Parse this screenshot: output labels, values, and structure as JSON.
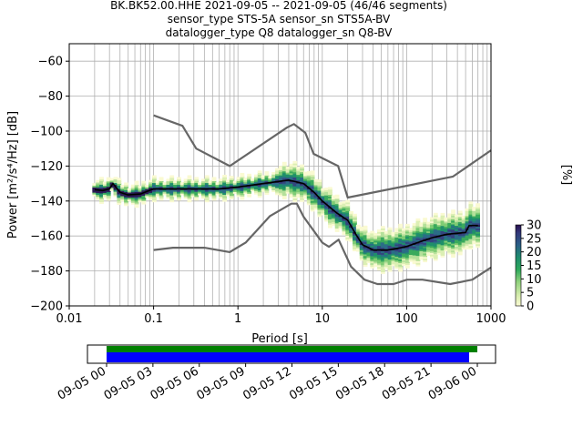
{
  "title": {
    "line1": "BK.BK52.00.HHE   2021-09-05 -- 2021-09-05  (46/46 segments)",
    "line2": "sensor_type STS-5A sensor_sn STS5A-BV",
    "line3": "datalogger_type Q8 datalogger_sn Q8-BV"
  },
  "chart_data": [
    {
      "type": "heatmap",
      "title": "",
      "xlabel": "Period [s]",
      "ylabel": "Power [m²/s⁴/Hz] [dB]",
      "x_scale": "log",
      "xlim": [
        0.01,
        1000
      ],
      "ylim": [
        -200,
        -50
      ],
      "x_ticks": [
        0.01,
        0.1,
        1,
        10,
        100,
        1000
      ],
      "x_tick_labels": [
        "0.01",
        "0.1",
        "1",
        "10",
        "100",
        "1000"
      ],
      "y_ticks": [
        -200,
        -180,
        -160,
        -140,
        -120,
        -100,
        -80,
        -60
      ],
      "y_tick_labels": [
        "−200",
        "−180",
        "−160",
        "−140",
        "−120",
        "−100",
        "−80",
        "−60"
      ],
      "grid": true,
      "series": [
        {
          "name": "",
          "kind": "noise-model-high",
          "color": "#666666",
          "x": [
            0.1,
            0.22,
            0.32,
            0.8,
            3.8,
            4.6,
            6.3,
            7.9,
            15.4,
            20,
            354.8,
            1000
          ],
          "y": [
            -91,
            -97,
            -110,
            -120,
            -98,
            -96,
            -101,
            -113,
            -120,
            -138,
            -126,
            -111
          ]
        },
        {
          "name": "",
          "kind": "noise-model-low",
          "color": "#666666",
          "x": [
            0.1,
            0.17,
            0.4,
            0.8,
            1.24,
            2.4,
            4.3,
            5,
            6,
            10,
            12,
            15.6,
            21.9,
            31.6,
            45,
            70,
            101,
            154,
            328,
            600,
            1000
          ],
          "y": [
            -168,
            -166.7,
            -166.7,
            -169.2,
            -163.7,
            -148.6,
            -141.5,
            -141.5,
            -149,
            -163.8,
            -166.2,
            -162.1,
            -177.5,
            -185,
            -187.5,
            -187.5,
            -185,
            -185,
            -187.5,
            -185,
            -178
          ]
        },
        {
          "name": "",
          "kind": "mode",
          "color": "#000000",
          "x": [
            0.02,
            0.025,
            0.03,
            0.033,
            0.04,
            0.05,
            0.07,
            0.1,
            0.15,
            0.3,
            0.6,
            1,
            2,
            4,
            6,
            8,
            10,
            15,
            20,
            25,
            30,
            40,
            60,
            80,
            100,
            150,
            200,
            300,
            500,
            550,
            700
          ],
          "y": [
            -133.5,
            -134,
            -133,
            -130,
            -135,
            -136.5,
            -136,
            -133,
            -133,
            -133,
            -133,
            -132,
            -130,
            -128,
            -130,
            -135,
            -140,
            -147,
            -151,
            -159,
            -165,
            -168,
            -168,
            -167,
            -166,
            -163,
            -161,
            -159,
            -158,
            -154,
            -154
          ]
        }
      ],
      "colorbar": {
        "label": "[%]",
        "min": 0,
        "max": 30,
        "ticks": [
          0,
          5,
          10,
          15,
          20,
          25,
          30
        ],
        "tick_labels": [
          "0",
          "5",
          "10",
          "15",
          "20",
          "25",
          "30"
        ],
        "colormap": "PQLX (pale yellow → green → blue → purple)"
      }
    },
    {
      "type": "bar",
      "title": "",
      "xlabel": "",
      "ylabel": "",
      "x_tick_labels": [
        "09-05 00",
        "09-05 03",
        "09-05 06",
        "09-05 09",
        "09-05 12",
        "09-05 15",
        "09-05 18",
        "09-05 21",
        "09-06 00"
      ],
      "series": [
        {
          "name": "",
          "kind": "data-coverage",
          "color": "#008000",
          "start": "09-05 00:00",
          "end": "09-06 00:30"
        },
        {
          "name": "",
          "kind": "psd-coverage",
          "color": "#0000ff",
          "start": "09-05 00:00",
          "end": "09-05 23:30"
        }
      ]
    }
  ]
}
